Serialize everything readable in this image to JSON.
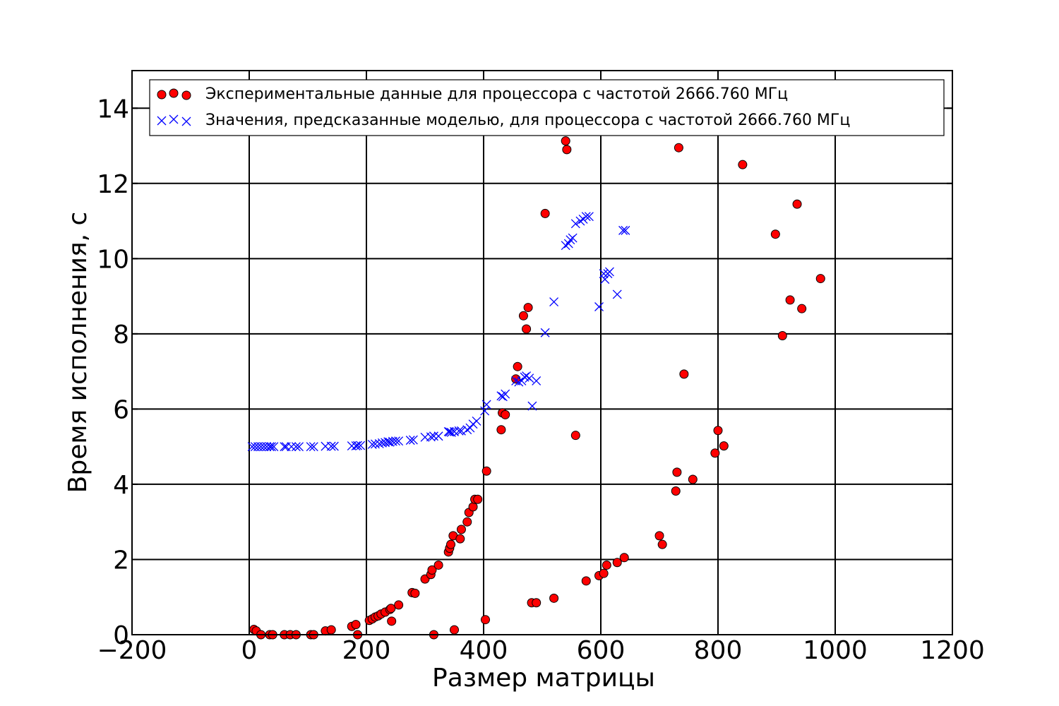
{
  "chart_data": {
    "type": "scatter",
    "title": "",
    "xlabel": "Размер матрицы",
    "ylabel": "Время исполнения, с",
    "xlim": [
      -200,
      1200
    ],
    "ylim": [
      0,
      15
    ],
    "xticks": [
      -200,
      0,
      200,
      400,
      600,
      800,
      1000,
      1200
    ],
    "xtick_labels": [
      "−200",
      "0",
      "200",
      "400",
      "600",
      "800",
      "1000",
      "1200"
    ],
    "yticks": [
      0,
      2,
      4,
      6,
      8,
      10,
      12,
      14
    ],
    "ytick_labels": [
      "0",
      "2",
      "4",
      "6",
      "8",
      "10",
      "12",
      "14"
    ],
    "grid": true,
    "legend_position": "top",
    "series": [
      {
        "name": "Экспериментальные данные для процессора с частотой 2666.760 МГц",
        "marker": "circle",
        "color": "#ff0000",
        "points": [
          [
            8,
            0.14
          ],
          [
            12,
            0.1
          ],
          [
            20,
            0.0
          ],
          [
            35,
            0.0
          ],
          [
            40,
            0.0
          ],
          [
            60,
            0.0
          ],
          [
            70,
            0.0
          ],
          [
            80,
            0.0
          ],
          [
            105,
            0.0
          ],
          [
            110,
            0.0
          ],
          [
            130,
            0.1
          ],
          [
            140,
            0.13
          ],
          [
            175,
            0.22
          ],
          [
            182,
            0.27
          ],
          [
            185,
            0.0
          ],
          [
            205,
            0.38
          ],
          [
            210,
            0.42
          ],
          [
            215,
            0.47
          ],
          [
            220,
            0.5
          ],
          [
            225,
            0.55
          ],
          [
            232,
            0.6
          ],
          [
            240,
            0.67
          ],
          [
            242,
            0.7
          ],
          [
            243,
            0.36
          ],
          [
            255,
            0.79
          ],
          [
            278,
            1.12
          ],
          [
            283,
            1.1
          ],
          [
            300,
            1.48
          ],
          [
            310,
            1.6
          ],
          [
            312,
            1.72
          ],
          [
            315,
            0.0
          ],
          [
            323,
            1.85
          ],
          [
            340,
            2.2
          ],
          [
            342,
            2.3
          ],
          [
            344,
            2.4
          ],
          [
            348,
            2.63
          ],
          [
            350,
            0.13
          ],
          [
            360,
            2.55
          ],
          [
            362,
            2.8
          ],
          [
            372,
            3.0
          ],
          [
            375,
            3.25
          ],
          [
            382,
            3.4
          ],
          [
            385,
            3.6
          ],
          [
            390,
            3.6
          ],
          [
            403,
            0.4
          ],
          [
            405,
            4.35
          ],
          [
            430,
            5.45
          ],
          [
            432,
            5.9
          ],
          [
            437,
            5.85
          ],
          [
            455,
            6.8
          ],
          [
            458,
            7.13
          ],
          [
            468,
            8.48
          ],
          [
            473,
            8.13
          ],
          [
            476,
            8.7
          ],
          [
            482,
            0.85
          ],
          [
            490,
            0.85
          ],
          [
            505,
            11.2
          ],
          [
            520,
            0.97
          ],
          [
            540,
            13.13
          ],
          [
            542,
            12.9
          ],
          [
            557,
            5.3
          ],
          [
            575,
            1.43
          ],
          [
            597,
            1.57
          ],
          [
            605,
            1.63
          ],
          [
            610,
            1.85
          ],
          [
            628,
            1.92
          ],
          [
            640,
            2.05
          ],
          [
            700,
            2.63
          ],
          [
            705,
            2.4
          ],
          [
            728,
            3.82
          ],
          [
            730,
            4.32
          ],
          [
            733,
            12.95
          ],
          [
            742,
            6.93
          ],
          [
            757,
            4.13
          ],
          [
            795,
            4.83
          ],
          [
            800,
            5.43
          ],
          [
            810,
            5.02
          ],
          [
            842,
            12.5
          ],
          [
            898,
            10.65
          ],
          [
            910,
            7.95
          ],
          [
            923,
            8.9
          ],
          [
            935,
            11.45
          ],
          [
            943,
            8.67
          ],
          [
            975,
            9.47
          ]
        ]
      },
      {
        "name": "Значения, предсказанные моделью, для процессора с частотой 2666.760 МГц",
        "marker": "x",
        "color": "#0000ff",
        "points": [
          [
            5,
            5.0
          ],
          [
            10,
            5.0
          ],
          [
            15,
            5.0
          ],
          [
            20,
            5.0
          ],
          [
            25,
            5.0
          ],
          [
            30,
            5.0
          ],
          [
            35,
            5.0
          ],
          [
            38,
            5.0
          ],
          [
            42,
            5.0
          ],
          [
            60,
            5.0
          ],
          [
            63,
            5.0
          ],
          [
            72,
            5.0
          ],
          [
            80,
            5.0
          ],
          [
            85,
            5.0
          ],
          [
            105,
            5.0
          ],
          [
            110,
            5.0
          ],
          [
            130,
            5.01
          ],
          [
            140,
            5.01
          ],
          [
            145,
            5.01
          ],
          [
            175,
            5.02
          ],
          [
            182,
            5.02
          ],
          [
            185,
            5.03
          ],
          [
            190,
            5.03
          ],
          [
            210,
            5.06
          ],
          [
            215,
            5.07
          ],
          [
            222,
            5.08
          ],
          [
            227,
            5.1
          ],
          [
            232,
            5.11
          ],
          [
            237,
            5.13
          ],
          [
            240,
            5.12
          ],
          [
            245,
            5.14
          ],
          [
            250,
            5.15
          ],
          [
            255,
            5.15
          ],
          [
            275,
            5.17
          ],
          [
            280,
            5.18
          ],
          [
            300,
            5.25
          ],
          [
            310,
            5.26
          ],
          [
            315,
            5.28
          ],
          [
            323,
            5.28
          ],
          [
            340,
            5.4
          ],
          [
            342,
            5.39
          ],
          [
            345,
            5.38
          ],
          [
            350,
            5.4
          ],
          [
            358,
            5.42
          ],
          [
            362,
            5.42
          ],
          [
            372,
            5.45
          ],
          [
            377,
            5.5
          ],
          [
            382,
            5.6
          ],
          [
            388,
            5.68
          ],
          [
            402,
            5.95
          ],
          [
            405,
            6.12
          ],
          [
            430,
            6.35
          ],
          [
            433,
            6.33
          ],
          [
            437,
            6.4
          ],
          [
            455,
            6.75
          ],
          [
            460,
            6.72
          ],
          [
            465,
            6.75
          ],
          [
            470,
            6.85
          ],
          [
            473,
            6.88
          ],
          [
            478,
            6.82
          ],
          [
            483,
            6.08
          ],
          [
            490,
            6.75
          ],
          [
            505,
            8.03
          ],
          [
            520,
            8.85
          ],
          [
            540,
            10.35
          ],
          [
            545,
            10.4
          ],
          [
            548,
            10.5
          ],
          [
            552,
            10.55
          ],
          [
            557,
            10.93
          ],
          [
            565,
            11.0
          ],
          [
            570,
            11.05
          ],
          [
            575,
            11.12
          ],
          [
            580,
            11.12
          ],
          [
            597,
            8.72
          ],
          [
            605,
            9.6
          ],
          [
            607,
            9.45
          ],
          [
            612,
            9.6
          ],
          [
            615,
            9.65
          ],
          [
            628,
            9.05
          ],
          [
            638,
            10.75
          ],
          [
            642,
            10.75
          ]
        ]
      }
    ]
  }
}
